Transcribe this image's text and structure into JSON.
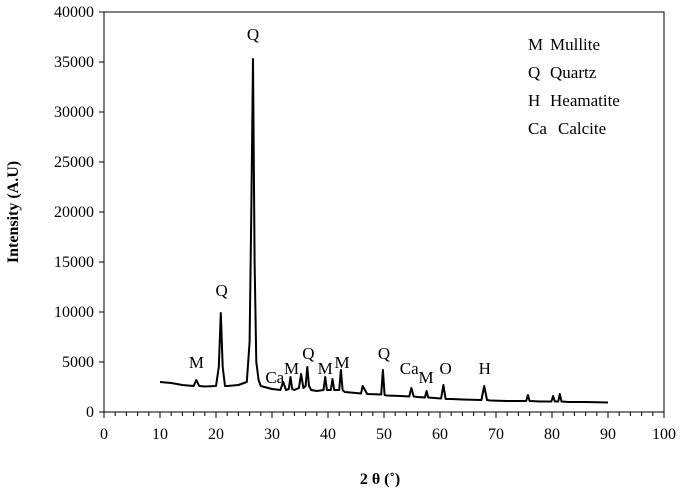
{
  "chart_data": {
    "type": "line",
    "xlabel": "2 θ (˚)",
    "ylabel": "Intensity (A.U)",
    "xlim": [
      0,
      100
    ],
    "ylim": [
      0,
      40000
    ],
    "x_ticks": [
      "0",
      "10",
      "20",
      "30",
      "40",
      "50",
      "60",
      "70",
      "80",
      "90",
      "100"
    ],
    "y_ticks": [
      "0",
      "5000",
      "10000",
      "15000",
      "20000",
      "25000",
      "30000",
      "35000",
      "40000"
    ],
    "grid": false,
    "legend_position": "top-right",
    "legend": [
      {
        "code": "M",
        "name": "Mullite"
      },
      {
        "code": "Q",
        "name": "Quartz"
      },
      {
        "code": "H",
        "name": "Heamatite"
      },
      {
        "code": "Ca",
        "name": "Calcite"
      }
    ],
    "annotations": [
      {
        "label": "M",
        "x": 16.5,
        "y": 4400
      },
      {
        "label": "Q",
        "x": 21.0,
        "y": 11600
      },
      {
        "label": "Q",
        "x": 26.6,
        "y": 37200
      },
      {
        "label": "Ca",
        "x": 30.5,
        "y": 2900
      },
      {
        "label": "M",
        "x": 33.5,
        "y": 3800
      },
      {
        "label": "Q",
        "x": 36.5,
        "y": 5300
      },
      {
        "label": "M",
        "x": 39.5,
        "y": 3800
      },
      {
        "label": "M",
        "x": 42.5,
        "y": 4400
      },
      {
        "label": "Q",
        "x": 50.0,
        "y": 5300
      },
      {
        "label": "Ca",
        "x": 54.5,
        "y": 3800
      },
      {
        "label": "M",
        "x": 57.5,
        "y": 2900
      },
      {
        "label": "O",
        "x": 61.0,
        "y": 3800
      },
      {
        "label": "H",
        "x": 68.0,
        "y": 3800
      }
    ],
    "series": [
      {
        "x": [
          10,
          12,
          14,
          16,
          16.5,
          17,
          18,
          20,
          20.5,
          20.85,
          21.2,
          21.6,
          22,
          24,
          25.5,
          26.0,
          26.3,
          26.6,
          26.9,
          27.2,
          27.6,
          28,
          30,
          31.5,
          32.0,
          32.5,
          33,
          33.3,
          33.6,
          34,
          34.8,
          35.2,
          35.6,
          36,
          36.3,
          36.6,
          37,
          38,
          39.2,
          39.5,
          39.8,
          40.5,
          40.8,
          41.1,
          42,
          42.3,
          42.6,
          43,
          45,
          45.9,
          46.2,
          47,
          49.5,
          49.8,
          50.1,
          50.5,
          53,
          54.5,
          54.9,
          55.3,
          56,
          57.3,
          57.6,
          57.9,
          59,
          60.2,
          60.6,
          61,
          62,
          64,
          67.4,
          67.9,
          68.4,
          69,
          72,
          75.4,
          75.7,
          76,
          78,
          79.9,
          80.2,
          80.5,
          81.1,
          81.4,
          81.7,
          83,
          86,
          90
        ],
        "y": [
          3000,
          2900,
          2700,
          2600,
          3200,
          2600,
          2550,
          2600,
          4500,
          9900,
          4500,
          2600,
          2600,
          2700,
          3000,
          7000,
          20000,
          35300,
          15000,
          5000,
          3200,
          2600,
          2300,
          2200,
          3000,
          2200,
          2300,
          3500,
          2300,
          2200,
          2400,
          3800,
          2400,
          2600,
          4500,
          2600,
          2200,
          2100,
          2200,
          3500,
          2200,
          2200,
          3300,
          2200,
          2200,
          4200,
          2200,
          2000,
          1900,
          1850,
          2600,
          1800,
          1750,
          4200,
          1700,
          1650,
          1600,
          1550,
          2400,
          1550,
          1500,
          1450,
          2100,
          1450,
          1400,
          1350,
          2700,
          1300,
          1300,
          1250,
          1200,
          2600,
          1200,
          1150,
          1100,
          1100,
          1700,
          1100,
          1050,
          1050,
          1600,
          1050,
          1050,
          1800,
          1050,
          1000,
          1000,
          950
        ]
      }
    ]
  }
}
